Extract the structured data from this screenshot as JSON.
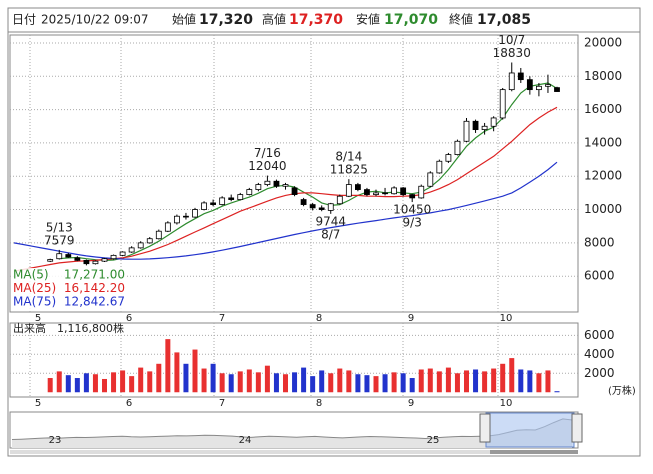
{
  "header": {
    "date_label": "日付",
    "date": "2025/10/22 09:07",
    "open_label": "始値",
    "open": "17,320",
    "high_label": "高値",
    "high": "17,370",
    "low_label": "安値",
    "low": "17,070",
    "close_label": "終値",
    "close": "17,085"
  },
  "chart_data": {
    "type": "candlestick",
    "months": [
      "5",
      "6",
      "7",
      "8",
      "9",
      "10"
    ],
    "ylim": [
      3850,
      20480
    ],
    "yticks": [
      6000,
      8000,
      10000,
      12000,
      14000,
      16000,
      18000,
      20000
    ],
    "grid": true,
    "open": [
      null,
      null,
      null,
      null,
      6900,
      7050,
      7300,
      7100,
      6950,
      6750,
      6900,
      7050,
      7250,
      7450,
      7700,
      8000,
      8250,
      8700,
      9200,
      9600,
      9550,
      10000,
      10400,
      10300,
      10700,
      10600,
      10900,
      11200,
      11500,
      11700,
      11400,
      11300,
      10600,
      10300,
      10100,
      9950,
      10350,
      10800,
      11500,
      11200,
      10900,
      11000,
      10950,
      11300,
      10900,
      10700,
      11400,
      12200,
      12900,
      13300,
      14100,
      15300,
      14800,
      15000,
      15500,
      17200,
      18200,
      17800,
      17200,
      17400,
      17320
    ],
    "high": [
      null,
      null,
      null,
      null,
      7050,
      7579,
      7400,
      7200,
      7000,
      6950,
      7100,
      7300,
      7500,
      7800,
      8100,
      8350,
      8800,
      9300,
      9700,
      9800,
      10100,
      10500,
      10600,
      10800,
      10900,
      11000,
      11300,
      11600,
      12040,
      11800,
      11600,
      11400,
      10700,
      10400,
      10250,
      10400,
      10900,
      11825,
      11600,
      11300,
      11200,
      11300,
      11400,
      11350,
      10950,
      11500,
      12300,
      13000,
      13400,
      14200,
      15500,
      15400,
      15200,
      15600,
      17300,
      18830,
      18500,
      18000,
      17600,
      18100,
      17370
    ],
    "low": [
      null,
      null,
      null,
      null,
      6850,
      7000,
      7100,
      6900,
      6650,
      6700,
      6850,
      7000,
      7200,
      7400,
      7650,
      7950,
      8200,
      8650,
      9100,
      9400,
      9500,
      9950,
      10200,
      10250,
      10500,
      10550,
      10850,
      11100,
      11400,
      11300,
      11200,
      10800,
      10200,
      9950,
      9900,
      9744,
      10300,
      10750,
      11100,
      10800,
      10800,
      10850,
      10900,
      10800,
      10450,
      10650,
      11350,
      12150,
      12800,
      13250,
      14050,
      14600,
      14500,
      14700,
      15400,
      17100,
      17600,
      16900,
      16800,
      17000,
      17070
    ],
    "close": [
      null,
      null,
      null,
      null,
      7000,
      7350,
      7150,
      6950,
      6750,
      6900,
      7050,
      7250,
      7450,
      7700,
      8000,
      8250,
      8700,
      9200,
      9600,
      9550,
      10000,
      10400,
      10300,
      10700,
      10600,
      10900,
      11200,
      11500,
      11700,
      11400,
      11500,
      10900,
      10300,
      10100,
      10000,
      10350,
      10800,
      11500,
      11200,
      10900,
      11000,
      10950,
      11300,
      10900,
      10700,
      11400,
      12200,
      12900,
      13300,
      14100,
      15300,
      14800,
      15000,
      15500,
      17200,
      18200,
      17800,
      17200,
      17400,
      17500,
      17085
    ],
    "up_color": "#ffffff",
    "down_color": "#000000",
    "series": [
      {
        "name": "MA(5)",
        "color": "#2e8b2e",
        "legend_value": {
          "value": 17271.0,
          "label": "17,271.00"
        },
        "values": [
          null,
          null,
          null,
          null,
          null,
          7050,
          7100,
          7120,
          7050,
          6990,
          6950,
          6970,
          7080,
          7300,
          7550,
          7800,
          8100,
          8450,
          8800,
          9150,
          9450,
          9750,
          9950,
          10200,
          10400,
          10580,
          10750,
          10980,
          11250,
          11400,
          11450,
          11350,
          11050,
          10750,
          10400,
          10250,
          10300,
          10550,
          10850,
          11050,
          11100,
          11000,
          11050,
          11000,
          10950,
          11050,
          11350,
          11800,
          12400,
          13100,
          13800,
          14300,
          14700,
          14950,
          15500,
          16300,
          17000,
          17400,
          17500,
          17600,
          17271.0
        ]
      },
      {
        "name": "MA(25)",
        "color": "#dd2222",
        "legend_value": {
          "value": 16142.2,
          "label": "16,142.20"
        },
        "values": [
          6300,
          6400,
          6500,
          6600,
          6700,
          6800,
          6850,
          6900,
          6920,
          6950,
          7000,
          7050,
          7100,
          7200,
          7350,
          7500,
          7700,
          7900,
          8150,
          8400,
          8650,
          8900,
          9150,
          9400,
          9650,
          9900,
          10100,
          10300,
          10500,
          10700,
          10850,
          10950,
          11000,
          11000,
          10950,
          10900,
          10850,
          10850,
          10850,
          10800,
          10800,
          10780,
          10780,
          10800,
          10820,
          10900,
          11050,
          11250,
          11500,
          11800,
          12150,
          12500,
          12850,
          13200,
          13650,
          14100,
          14600,
          15100,
          15500,
          15850,
          16142.2
        ]
      },
      {
        "name": "MA(75)",
        "color": "#2233cc",
        "legend_value": {
          "value": 12842.67,
          "label": "12,842.67"
        },
        "values": [
          8000,
          7900,
          7800,
          7700,
          7600,
          7500,
          7400,
          7300,
          7220,
          7150,
          7100,
          7060,
          7030,
          7020,
          7020,
          7040,
          7070,
          7110,
          7160,
          7220,
          7290,
          7370,
          7460,
          7560,
          7670,
          7780,
          7900,
          8020,
          8140,
          8260,
          8380,
          8500,
          8610,
          8720,
          8820,
          8920,
          9010,
          9100,
          9180,
          9260,
          9340,
          9420,
          9500,
          9570,
          9640,
          9720,
          9800,
          9900,
          10000,
          10120,
          10250,
          10380,
          10520,
          10660,
          10800,
          11000,
          11300,
          11650,
          12000,
          12400,
          12842.67
        ]
      }
    ],
    "annotations": [
      {
        "date": "5/13",
        "label": "7579"
      },
      {
        "date": "7/16",
        "label": "12040"
      },
      {
        "date": "8/14",
        "label": "11825"
      },
      {
        "date": "8/7",
        "label": "9744"
      },
      {
        "date": "9/3",
        "label": "10450"
      },
      {
        "date": "10/7",
        "label": "18830"
      }
    ],
    "volume": {
      "title": "出来高",
      "total": "1,116,800株",
      "unit": "(万株)",
      "ylim": [
        -500,
        7300
      ],
      "yticks": [
        2000,
        4000,
        6000
      ],
      "up_color": "#e83030",
      "down_color": "#2233cc",
      "values": [
        null,
        null,
        null,
        null,
        1500,
        2200,
        1800,
        1500,
        2000,
        1900,
        1400,
        2100,
        2300,
        1700,
        2600,
        2200,
        3000,
        5600,
        4200,
        3000,
        4500,
        2500,
        3000,
        2000,
        1900,
        2200,
        2400,
        2100,
        2800,
        2000,
        1900,
        2100,
        2600,
        1700,
        2300,
        2000,
        2500,
        2300,
        1900,
        1800,
        1700,
        1900,
        2100,
        2000,
        1500,
        2400,
        2500,
        2200,
        2600,
        2000,
        2300,
        2400,
        2200,
        2500,
        3000,
        3600,
        2400,
        2300,
        2000,
        2300,
        112
      ]
    },
    "navigator": {
      "labels": [
        "23",
        "24",
        "25"
      ],
      "ylim": [
        0,
        22000
      ],
      "values": [
        5200,
        5400,
        5600,
        5900,
        6200,
        6000,
        6300,
        6500,
        6400,
        6600,
        6800,
        7000,
        7200,
        6900,
        6700,
        6900,
        7100,
        7300,
        7500,
        7400,
        7600,
        7800,
        7700,
        7500,
        7300,
        6800,
        6500,
        6900,
        7200,
        7000,
        6800,
        6600,
        6900,
        7100,
        6700,
        6400,
        6200,
        6500,
        6800,
        7000,
        6900,
        6700,
        6500,
        6300,
        6100,
        5800,
        6200,
        6600,
        6900,
        7100,
        7000,
        7200,
        7400,
        8200,
        9500,
        10800,
        11200,
        11000,
        13000,
        15500,
        17800,
        17100
      ]
    }
  }
}
